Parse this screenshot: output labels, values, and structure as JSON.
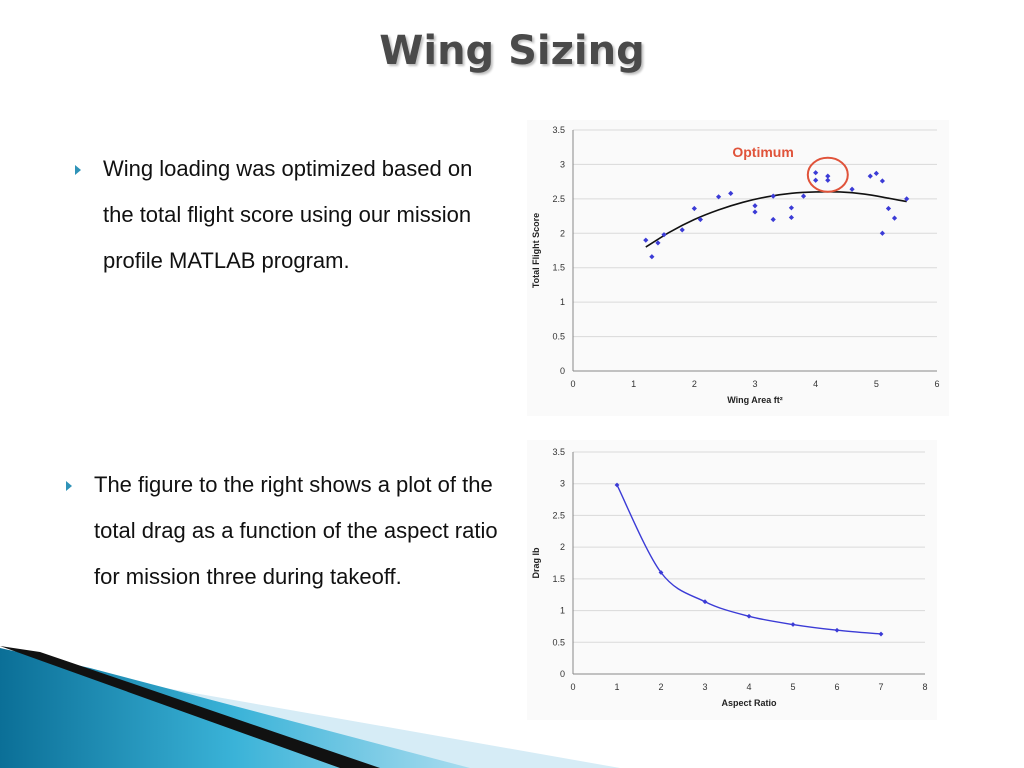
{
  "slide": {
    "title": "Wing Sizing"
  },
  "bullets": [
    {
      "text": "Wing loading was optimized based on the total flight score using our mission profile MATLAB program."
    },
    {
      "text": "The figure to the right shows a plot of the total drag as a function of the aspect ratio for mission three during takeoff."
    }
  ],
  "colors": {
    "title": "#4a4a4a",
    "bullet_marker": "#2f93b8",
    "point": "#3b3bd6",
    "trend": "#111111",
    "annotation": "#e0533a",
    "grid": "#d9d9d9"
  },
  "chart_data": [
    {
      "type": "scatter",
      "title": "",
      "xlabel": "Wing Area ft²",
      "ylabel": "Total Flight Score",
      "xlim": [
        0,
        6
      ],
      "ylim": [
        0,
        3.5
      ],
      "xticks": [
        "0",
        "1",
        "2",
        "3",
        "4",
        "5",
        "6"
      ],
      "yticks": [
        "0",
        "0.5",
        "1",
        "1.5",
        "2",
        "2.5",
        "3",
        "3.5"
      ],
      "grid": true,
      "annotation": "Optimum",
      "annotation_center": [
        4.2,
        2.85
      ],
      "points": [
        [
          1.2,
          1.9
        ],
        [
          1.3,
          1.66
        ],
        [
          1.4,
          1.86
        ],
        [
          1.5,
          1.98
        ],
        [
          1.8,
          2.05
        ],
        [
          2.0,
          2.36
        ],
        [
          2.1,
          2.2
        ],
        [
          2.4,
          2.53
        ],
        [
          2.6,
          2.58
        ],
        [
          3.0,
          2.4
        ],
        [
          3.0,
          2.31
        ],
        [
          3.3,
          2.54
        ],
        [
          3.3,
          2.2
        ],
        [
          3.6,
          2.37
        ],
        [
          3.6,
          2.23
        ],
        [
          3.8,
          2.54
        ],
        [
          4.0,
          2.88
        ],
        [
          4.0,
          2.77
        ],
        [
          4.2,
          2.83
        ],
        [
          4.2,
          2.77
        ],
        [
          4.6,
          2.64
        ],
        [
          4.9,
          2.83
        ],
        [
          5.0,
          2.87
        ],
        [
          5.1,
          2.76
        ],
        [
          5.1,
          2.0
        ],
        [
          5.2,
          2.36
        ],
        [
          5.3,
          2.22
        ],
        [
          5.5,
          2.5
        ]
      ],
      "trend": {
        "name": "",
        "x": [
          1.2,
          1.6,
          2.0,
          2.4,
          2.8,
          3.2,
          3.6,
          4.0,
          4.4,
          4.8,
          5.2,
          5.5
        ],
        "y": [
          1.8,
          2.02,
          2.2,
          2.34,
          2.45,
          2.53,
          2.58,
          2.6,
          2.6,
          2.57,
          2.51,
          2.46
        ]
      }
    },
    {
      "type": "line",
      "title": "",
      "xlabel": "Aspect Ratio",
      "ylabel": "Drag lb",
      "xlim": [
        0,
        8
      ],
      "ylim": [
        0,
        3.5
      ],
      "xticks": [
        "0",
        "1",
        "2",
        "3",
        "4",
        "5",
        "6",
        "7",
        "8"
      ],
      "yticks": [
        "0",
        "0.5",
        "1",
        "1.5",
        "2",
        "2.5",
        "3",
        "3.5"
      ],
      "grid": true,
      "series": [
        {
          "name": "",
          "x": [
            1,
            2,
            3,
            4,
            5,
            6,
            7
          ],
          "values": [
            2.98,
            1.6,
            1.14,
            0.91,
            0.78,
            0.69,
            0.63
          ]
        }
      ]
    }
  ]
}
